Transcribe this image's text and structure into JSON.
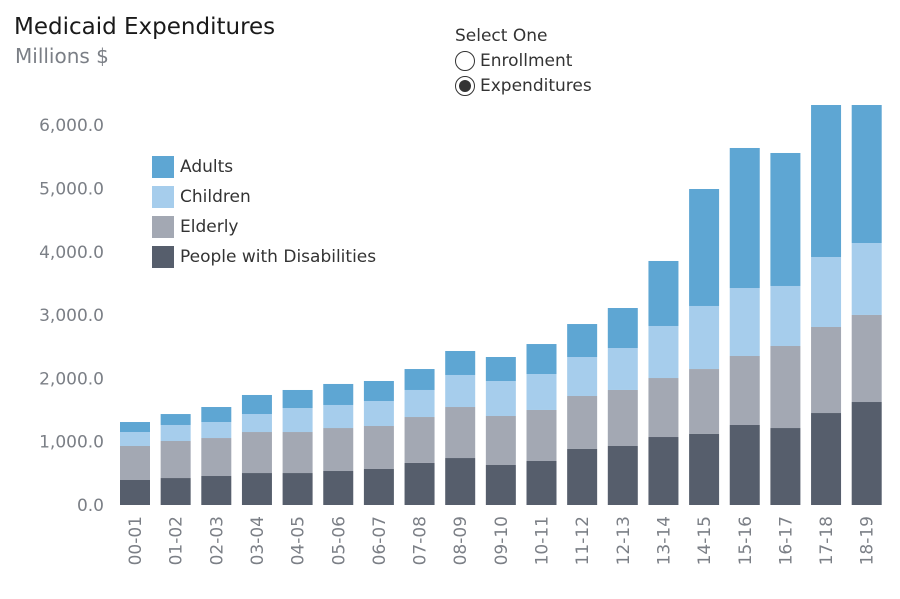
{
  "header": {
    "title": "Medicaid Expenditures",
    "subtitle": "Millions $"
  },
  "selector": {
    "label": "Select One",
    "options": [
      {
        "label": "Enrollment",
        "selected": false
      },
      {
        "label": "Expenditures",
        "selected": true
      }
    ]
  },
  "chart_data": {
    "type": "bar",
    "stacked": true,
    "title": "Medicaid Expenditures",
    "subtitle": "Millions $",
    "xlabel": "",
    "ylabel": "",
    "ylim": [
      0,
      6300
    ],
    "yticks": [
      0,
      1000,
      2000,
      3000,
      4000,
      5000,
      6000
    ],
    "ytick_labels": [
      "0.0",
      "1,000.0",
      "2,000.0",
      "3,000.0",
      "4,000.0",
      "5,000.0",
      "6,000.0"
    ],
    "grid": false,
    "legend_position": "top-left",
    "categories": [
      "00-01",
      "01-02",
      "02-03",
      "03-04",
      "04-05",
      "05-06",
      "06-07",
      "07-08",
      "08-09",
      "09-10",
      "10-11",
      "11-12",
      "12-13",
      "13-14",
      "14-15",
      "15-16",
      "16-17",
      "17-18",
      "18-19"
    ],
    "series": [
      {
        "name": "People with Disabilities",
        "color": "#565e6c",
        "values": [
          395,
          426,
          458,
          505,
          505,
          537,
          569,
          664,
          742,
          632,
          695,
          885,
          932,
          1074,
          1122,
          1264,
          1216,
          1453,
          1627
        ]
      },
      {
        "name": "Elderly",
        "color": "#a3a8b3",
        "values": [
          537,
          585,
          600,
          648,
          648,
          679,
          679,
          726,
          806,
          774,
          806,
          837,
          885,
          932,
          1026,
          1090,
          1296,
          1359,
          1375
        ]
      },
      {
        "name": "Children",
        "color": "#a6cdec",
        "values": [
          221,
          253,
          253,
          284,
          379,
          364,
          395,
          427,
          506,
          553,
          568,
          616,
          663,
          822,
          996,
          1074,
          948,
          1106,
          1137
        ]
      },
      {
        "name": "Adults",
        "color": "#5ea6d3",
        "values": [
          158,
          173,
          237,
          301,
          285,
          332,
          316,
          331,
          379,
          379,
          474,
          521,
          632,
          1027,
          1848,
          2212,
          2101,
          2401,
          2180
        ]
      }
    ],
    "legend_order": [
      "Adults",
      "Children",
      "Elderly",
      "People with Disabilities"
    ]
  }
}
